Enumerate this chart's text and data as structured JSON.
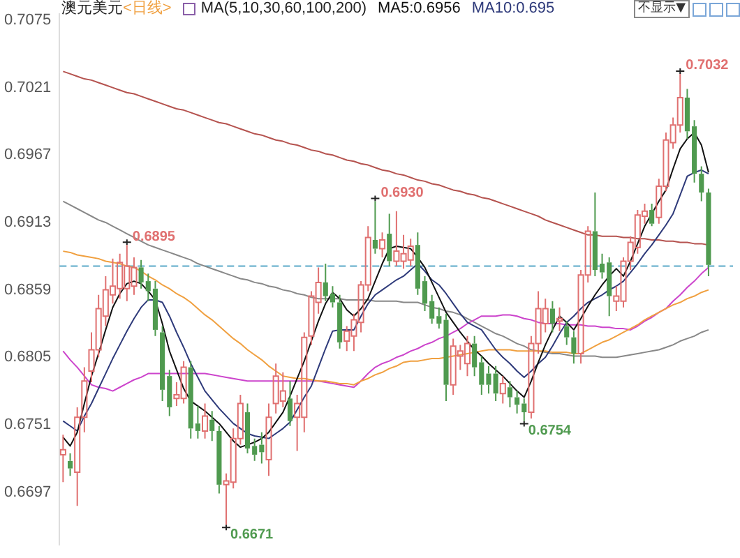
{
  "chart_data": {
    "type": "candlestick",
    "title": "澳元美元",
    "subtitle": "<日线>",
    "categories": [
      null,
      null,
      null,
      null,
      null,
      null,
      null,
      null,
      null,
      null,
      null,
      null,
      null,
      null,
      null,
      null,
      null,
      null,
      null,
      null,
      null,
      null,
      null,
      null,
      null,
      null,
      null,
      null,
      null,
      null,
      null,
      null,
      null,
      null,
      null,
      null,
      null,
      null,
      null,
      null,
      null,
      null,
      null,
      null,
      null,
      null,
      null,
      null,
      null,
      null,
      null,
      null,
      null,
      null,
      null,
      null,
      null,
      null,
      null,
      null,
      null,
      null,
      null,
      null,
      null,
      null,
      null,
      null,
      null,
      null,
      null,
      null,
      null,
      null,
      null,
      null,
      null,
      null,
      null,
      null,
      null,
      null,
      null,
      null,
      null,
      null,
      null,
      null,
      null,
      null,
      null,
      null
    ],
    "ohlc": [
      [
        0.6727,
        0.6743,
        0.6705,
        0.6731
      ],
      [
        0.6722,
        0.6728,
        0.671,
        0.6716
      ],
      [
        0.6713,
        0.6765,
        0.6686,
        0.6757
      ],
      [
        0.6757,
        0.6797,
        0.6745,
        0.6786
      ],
      [
        0.6794,
        0.6825,
        0.6785,
        0.6811
      ],
      [
        0.6811,
        0.6855,
        0.6805,
        0.6844
      ],
      [
        0.6838,
        0.687,
        0.683,
        0.6859
      ],
      [
        0.6855,
        0.6884,
        0.6848,
        0.6862
      ],
      [
        0.686,
        0.6888,
        0.6852,
        0.6881
      ],
      [
        0.686,
        0.6895,
        0.685,
        0.6878
      ],
      [
        0.6862,
        0.6885,
        0.6855,
        0.6877
      ],
      [
        0.6877,
        0.6883,
        0.686,
        0.6865
      ],
      [
        0.6866,
        0.6872,
        0.685,
        0.6858
      ],
      [
        0.686,
        0.6866,
        0.6822,
        0.6827
      ],
      [
        0.6825,
        0.683,
        0.677,
        0.6779
      ],
      [
        0.679,
        0.6795,
        0.6758,
        0.6765
      ],
      [
        0.6772,
        0.6785,
        0.6766,
        0.6775
      ],
      [
        0.6772,
        0.6802,
        0.6768,
        0.6797
      ],
      [
        0.6797,
        0.6802,
        0.674,
        0.6748
      ],
      [
        0.6752,
        0.6766,
        0.674,
        0.6746
      ],
      [
        0.6746,
        0.6768,
        0.674,
        0.6758
      ],
      [
        0.6755,
        0.6762,
        0.6738,
        0.6746
      ],
      [
        0.6746,
        0.675,
        0.6696,
        0.6703
      ],
      [
        0.6703,
        0.6712,
        0.6671,
        0.6706
      ],
      [
        0.6705,
        0.6748,
        0.67,
        0.674
      ],
      [
        0.674,
        0.6775,
        0.6735,
        0.6768
      ],
      [
        0.6761,
        0.6768,
        0.6728,
        0.6732
      ],
      [
        0.6734,
        0.674,
        0.6722,
        0.6727
      ],
      [
        0.6735,
        0.6745,
        0.672,
        0.6729
      ],
      [
        0.6723,
        0.6768,
        0.671,
        0.6757
      ],
      [
        0.6768,
        0.68,
        0.676,
        0.679
      ],
      [
        0.677,
        0.6793,
        0.6765,
        0.6778
      ],
      [
        0.6772,
        0.6786,
        0.675,
        0.6754
      ],
      [
        0.6757,
        0.6775,
        0.673,
        0.6768
      ],
      [
        0.6757,
        0.6825,
        0.6745,
        0.6821
      ],
      [
        0.6822,
        0.6858,
        0.6815,
        0.6854
      ],
      [
        0.6849,
        0.6877,
        0.684,
        0.6865
      ],
      [
        0.6865,
        0.688,
        0.685,
        0.6854
      ],
      [
        0.6856,
        0.6862,
        0.6845,
        0.6849
      ],
      [
        0.6849,
        0.6855,
        0.6812,
        0.6817
      ],
      [
        0.6818,
        0.683,
        0.681,
        0.6826
      ],
      [
        0.6822,
        0.684,
        0.681,
        0.6835
      ],
      [
        0.6833,
        0.6866,
        0.6825,
        0.6863
      ],
      [
        0.6863,
        0.691,
        0.6858,
        0.6901
      ],
      [
        0.6899,
        0.693,
        0.6888,
        0.6892
      ],
      [
        0.6892,
        0.6905,
        0.6885,
        0.6899
      ],
      [
        0.6904,
        0.692,
        0.6878,
        0.6882
      ],
      [
        0.6882,
        0.6922,
        0.6878,
        0.689
      ],
      [
        0.6882,
        0.6903,
        0.6876,
        0.6888
      ],
      [
        0.6883,
        0.69,
        0.6878,
        0.6894
      ],
      [
        0.6895,
        0.6905,
        0.6855,
        0.686
      ],
      [
        0.6866,
        0.687,
        0.6842,
        0.6848
      ],
      [
        0.685,
        0.6855,
        0.6832,
        0.6836
      ],
      [
        0.6838,
        0.6845,
        0.6828,
        0.6832
      ],
      [
        0.6835,
        0.684,
        0.677,
        0.6783
      ],
      [
        0.6783,
        0.682,
        0.6775,
        0.6814
      ],
      [
        0.6806,
        0.6815,
        0.6795,
        0.681
      ],
      [
        0.68,
        0.6822,
        0.679,
        0.6816
      ],
      [
        0.6816,
        0.6822,
        0.679,
        0.6797
      ],
      [
        0.6801,
        0.6806,
        0.6775,
        0.6783
      ],
      [
        0.6792,
        0.6798,
        0.6776,
        0.6783
      ],
      [
        0.6792,
        0.6798,
        0.677,
        0.6776
      ],
      [
        0.6776,
        0.679,
        0.6768,
        0.6784
      ],
      [
        0.6781,
        0.6786,
        0.6765,
        0.6773
      ],
      [
        0.6773,
        0.6778,
        0.676,
        0.6767
      ],
      [
        0.6768,
        0.6772,
        0.6754,
        0.6761
      ],
      [
        0.6761,
        0.6822,
        0.6756,
        0.6816
      ],
      [
        0.6816,
        0.6858,
        0.6808,
        0.6844
      ],
      [
        0.6832,
        0.6852,
        0.6825,
        0.6844
      ],
      [
        0.6844,
        0.685,
        0.6825,
        0.6832
      ],
      [
        0.6834,
        0.6845,
        0.6826,
        0.6836
      ],
      [
        0.683,
        0.6834,
        0.6815,
        0.6821
      ],
      [
        0.6821,
        0.6826,
        0.68,
        0.6808
      ],
      [
        0.6808,
        0.6875,
        0.68,
        0.6871
      ],
      [
        0.6871,
        0.691,
        0.6865,
        0.6906
      ],
      [
        0.6906,
        0.6937,
        0.687,
        0.6875
      ],
      [
        0.688,
        0.6888,
        0.6868,
        0.6873
      ],
      [
        0.6881,
        0.6885,
        0.6838,
        0.6854
      ],
      [
        0.685,
        0.6862,
        0.6842,
        0.6854
      ],
      [
        0.685,
        0.6885,
        0.6845,
        0.6882
      ],
      [
        0.6882,
        0.6902,
        0.6875,
        0.6897
      ],
      [
        0.6893,
        0.6923,
        0.6888,
        0.6919
      ],
      [
        0.6918,
        0.6928,
        0.6912,
        0.6922
      ],
      [
        0.6923,
        0.6928,
        0.691,
        0.6912
      ],
      [
        0.6917,
        0.6948,
        0.6912,
        0.6942
      ],
      [
        0.6942,
        0.6985,
        0.6938,
        0.6979
      ],
      [
        0.6977,
        0.6997,
        0.6972,
        0.6991
      ],
      [
        0.6991,
        0.7032,
        0.6985,
        0.7013
      ],
      [
        0.7013,
        0.702,
        0.698,
        0.6986
      ],
      [
        0.699,
        0.6995,
        0.6945,
        0.6952
      ],
      [
        0.6952,
        0.6958,
        0.693,
        0.6937
      ],
      [
        0.6937,
        0.694,
        0.687,
        0.6879
      ]
    ],
    "colors": [
      "#e07070",
      "#4f9a4f",
      "#e07070",
      "#e07070",
      "#e07070",
      "#e07070",
      "#e07070",
      "#e07070",
      "#e07070",
      "#e07070",
      "#e07070",
      "#4f9a4f",
      "#4f9a4f",
      "#4f9a4f",
      "#4f9a4f",
      "#4f9a4f",
      "#e07070",
      "#e07070",
      "#4f9a4f",
      "#4f9a4f",
      "#e07070",
      "#4f9a4f",
      "#4f9a4f",
      "#e07070",
      "#e07070",
      "#e07070",
      "#4f9a4f",
      "#4f9a4f",
      "#4f9a4f",
      "#e07070",
      "#e07070",
      "#e07070",
      "#4f9a4f",
      "#e07070",
      "#e07070",
      "#e07070",
      "#e07070",
      "#4f9a4f",
      "#4f9a4f",
      "#4f9a4f",
      "#e07070",
      "#e07070",
      "#e07070",
      "#e07070",
      "#4f9a4f",
      "#e07070",
      "#4f9a4f",
      "#e07070",
      "#e07070",
      "#e07070",
      "#4f9a4f",
      "#4f9a4f",
      "#4f9a4f",
      "#4f9a4f",
      "#4f9a4f",
      "#e07070",
      "#e07070",
      "#e07070",
      "#4f9a4f",
      "#4f9a4f",
      "#4f9a4f",
      "#4f9a4f",
      "#e07070",
      "#4f9a4f",
      "#4f9a4f",
      "#4f9a4f",
      "#e07070",
      "#e07070",
      "#e07070",
      "#4f9a4f",
      "#e07070",
      "#4f9a4f",
      "#4f9a4f",
      "#e07070",
      "#e07070",
      "#4f9a4f",
      "#4f9a4f",
      "#4f9a4f",
      "#e07070",
      "#e07070",
      "#e07070",
      "#e07070",
      "#e07070",
      "#4f9a4f",
      "#e07070",
      "#e07070",
      "#e07070",
      "#e07070",
      "#4f9a4f",
      "#4f9a4f",
      "#4f9a4f",
      "#4f9a4f"
    ],
    "series": [
      {
        "type": "line",
        "name": "MA5:0.6956",
        "color": "#111111",
        "values": [
          0.6741,
          0.6734,
          0.6745,
          0.6768,
          0.679,
          0.6808,
          0.6827,
          0.6845,
          0.6856,
          0.6864,
          0.6866,
          0.6864,
          0.6858,
          0.6851,
          0.6832,
          0.681,
          0.6795,
          0.678,
          0.677,
          0.6766,
          0.6762,
          0.6757,
          0.6752,
          0.6745,
          0.6738,
          0.6733,
          0.6735,
          0.6737,
          0.674,
          0.6745,
          0.6753,
          0.6761,
          0.6774,
          0.6788,
          0.6802,
          0.6818,
          0.6834,
          0.6848,
          0.6857,
          0.6852,
          0.6843,
          0.6838,
          0.6844,
          0.6852,
          0.6866,
          0.688,
          0.6892,
          0.6894,
          0.6893,
          0.6892,
          0.6885,
          0.6877,
          0.6865,
          0.6853,
          0.6841,
          0.6833,
          0.6825,
          0.6818,
          0.6811,
          0.6806,
          0.68,
          0.6795,
          0.679,
          0.6784,
          0.6778,
          0.6773,
          0.6786,
          0.6801,
          0.6815,
          0.6827,
          0.6838,
          0.6833,
          0.6827,
          0.6836,
          0.6846,
          0.6855,
          0.6863,
          0.687,
          0.6876,
          0.687,
          0.6882,
          0.6896,
          0.691,
          0.692,
          0.693,
          0.6939,
          0.6956,
          0.6972,
          0.698,
          0.6985,
          0.6975,
          0.6953
        ]
      },
      {
        "type": "line",
        "name": "MA10:0.695",
        "color": "#2e3a7a",
        "values": [
          0.6754,
          0.675,
          0.6746,
          0.6758,
          0.6768,
          0.678,
          0.6792,
          0.6804,
          0.6815,
          0.6826,
          0.6836,
          0.6845,
          0.6851,
          0.6851,
          0.6849,
          0.6838,
          0.6825,
          0.6813,
          0.68,
          0.6789,
          0.6778,
          0.6771,
          0.6764,
          0.6758,
          0.6752,
          0.6748,
          0.6744,
          0.6742,
          0.6741,
          0.674,
          0.6744,
          0.6748,
          0.6753,
          0.6763,
          0.6773,
          0.6782,
          0.6797,
          0.6812,
          0.6826,
          0.6827,
          0.6827,
          0.6827,
          0.6838,
          0.6848,
          0.6855,
          0.6859,
          0.6863,
          0.6867,
          0.687,
          0.6875,
          0.688,
          0.6874,
          0.6867,
          0.6863,
          0.6856,
          0.6848,
          0.684,
          0.6833,
          0.683,
          0.6827,
          0.6819,
          0.6811,
          0.6805,
          0.68,
          0.6794,
          0.6789,
          0.6794,
          0.68,
          0.6805,
          0.6814,
          0.6824,
          0.6833,
          0.6838,
          0.6844,
          0.6849,
          0.6852,
          0.6855,
          0.6859,
          0.6862,
          0.6866,
          0.6873,
          0.688,
          0.6888,
          0.6895,
          0.6903,
          0.6911,
          0.692,
          0.6935,
          0.695,
          0.6953,
          0.6955,
          0.6952
        ]
      },
      {
        "type": "line",
        "color": "#f0a040",
        "values": [
          0.689,
          0.6889,
          0.6887,
          0.6886,
          0.6885,
          0.6884,
          0.6882,
          0.6881,
          0.688,
          0.6878,
          0.6877,
          0.6874,
          0.687,
          0.6867,
          0.6863,
          0.686,
          0.6856,
          0.6853,
          0.6849,
          0.6844,
          0.6839,
          0.6835,
          0.683,
          0.6825,
          0.682,
          0.6816,
          0.6811,
          0.6807,
          0.6803,
          0.6798,
          0.6794,
          0.679,
          0.6789,
          0.6788,
          0.6788,
          0.6787,
          0.6786,
          0.6786,
          0.6785,
          0.6784,
          0.6784,
          0.6783,
          0.6786,
          0.6788,
          0.6791,
          0.6793,
          0.6796,
          0.6798,
          0.6801,
          0.6802,
          0.6802,
          0.6803,
          0.6804,
          0.6804,
          0.6805,
          0.6806,
          0.6807,
          0.6808,
          0.6809,
          0.681,
          0.6811,
          0.6811,
          0.6811,
          0.6811,
          0.681,
          0.681,
          0.681,
          0.681,
          0.681,
          0.6809,
          0.6809,
          0.6809,
          0.6808,
          0.6808,
          0.6811,
          0.6814,
          0.6817,
          0.6819,
          0.6822,
          0.6825,
          0.6828,
          0.6831,
          0.6835,
          0.6838,
          0.6841,
          0.6844,
          0.6847,
          0.6849,
          0.6852,
          0.6854,
          0.6857,
          0.6859
        ]
      },
      {
        "type": "line",
        "color": "#cc44cc",
        "values": [
          0.681,
          0.6803,
          0.6797,
          0.679,
          0.6783,
          0.6781,
          0.678,
          0.6778,
          0.6781,
          0.6784,
          0.6787,
          0.6789,
          0.6792,
          0.6792,
          0.6792,
          0.6792,
          0.6792,
          0.6792,
          0.6792,
          0.6792,
          0.6792,
          0.6791,
          0.679,
          0.6789,
          0.6788,
          0.6787,
          0.6786,
          0.6786,
          0.6786,
          0.6786,
          0.6786,
          0.6786,
          0.6786,
          0.6786,
          0.6786,
          0.6786,
          0.6786,
          0.6785,
          0.6784,
          0.6783,
          0.6782,
          0.6781,
          0.6786,
          0.6792,
          0.6797,
          0.68,
          0.6802,
          0.6805,
          0.6807,
          0.681,
          0.6812,
          0.6815,
          0.6817,
          0.682,
          0.6822,
          0.6825,
          0.6828,
          0.6832,
          0.6835,
          0.6838,
          0.6838,
          0.6838,
          0.6839,
          0.6839,
          0.6838,
          0.6836,
          0.6835,
          0.6833,
          0.6832,
          0.6832,
          0.6832,
          0.6831,
          0.6831,
          0.6831,
          0.683,
          0.683,
          0.6829,
          0.6829,
          0.6828,
          0.6828,
          0.6827,
          0.683,
          0.6834,
          0.6837,
          0.6841,
          0.6844,
          0.685,
          0.6855,
          0.6861,
          0.6866,
          0.6872,
          0.6877
        ]
      },
      {
        "type": "line",
        "color": "#888888",
        "values": [
          0.693,
          0.6927,
          0.6924,
          0.6921,
          0.6918,
          0.6915,
          0.6913,
          0.691,
          0.6907,
          0.6904,
          0.6901,
          0.6898,
          0.6895,
          0.6893,
          0.6891,
          0.6889,
          0.6887,
          0.6885,
          0.6883,
          0.688,
          0.6878,
          0.6876,
          0.6874,
          0.6872,
          0.687,
          0.6868,
          0.6867,
          0.6865,
          0.6864,
          0.6862,
          0.6861,
          0.6859,
          0.6858,
          0.6856,
          0.6855,
          0.6853,
          0.6852,
          0.6852,
          0.6852,
          0.6852,
          0.6851,
          0.6851,
          0.6851,
          0.6851,
          0.685,
          0.685,
          0.685,
          0.685,
          0.6849,
          0.6849,
          0.6849,
          0.6847,
          0.6845,
          0.6844,
          0.6842,
          0.6841,
          0.6839,
          0.6836,
          0.6833,
          0.683,
          0.6827,
          0.6824,
          0.6822,
          0.6819,
          0.6816,
          0.6814,
          0.6811,
          0.681,
          0.6809,
          0.6808,
          0.6808,
          0.6807,
          0.6806,
          0.6806,
          0.6806,
          0.6806,
          0.6805,
          0.6805,
          0.6805,
          0.6806,
          0.6807,
          0.6808,
          0.6809,
          0.681,
          0.6811,
          0.6813,
          0.6815,
          0.6818,
          0.682,
          0.6822,
          0.6825,
          0.6827
        ]
      },
      {
        "type": "line",
        "color": "#b5534f",
        "values": [
          0.7034,
          0.7032,
          0.703,
          0.7028,
          0.7027,
          0.7025,
          0.7023,
          0.7021,
          0.7019,
          0.7017,
          0.7016,
          0.7014,
          0.7012,
          0.701,
          0.7008,
          0.7006,
          0.7004,
          0.7003,
          0.7001,
          0.6999,
          0.6997,
          0.6995,
          0.6993,
          0.6992,
          0.699,
          0.6988,
          0.6986,
          0.6984,
          0.6983,
          0.6981,
          0.6979,
          0.6978,
          0.6976,
          0.6975,
          0.6973,
          0.6971,
          0.697,
          0.6968,
          0.6967,
          0.6965,
          0.6963,
          0.6962,
          0.696,
          0.6959,
          0.6957,
          0.6955,
          0.6954,
          0.6952,
          0.6951,
          0.6949,
          0.6947,
          0.6946,
          0.6944,
          0.6943,
          0.6941,
          0.6939,
          0.6938,
          0.6936,
          0.6935,
          0.6933,
          0.6932,
          0.693,
          0.6928,
          0.6926,
          0.6924,
          0.6922,
          0.692,
          0.6918,
          0.6915,
          0.6913,
          0.6911,
          0.6909,
          0.6907,
          0.6905,
          0.6903,
          0.6903,
          0.6902,
          0.6902,
          0.6902,
          0.6901,
          0.6901,
          0.69,
          0.69,
          0.6899,
          0.6899,
          0.6898,
          0.6898,
          0.6897,
          0.6897,
          0.6896,
          0.6896,
          0.6895
        ]
      }
    ],
    "ylim": [
      0.6655,
      0.708
    ],
    "yticks": [
      0.7075,
      0.7021,
      0.6967,
      0.6913,
      0.6859,
      0.6805,
      0.6751,
      0.6697
    ],
    "grid": false,
    "legend": "top",
    "marker": "none",
    "ref_lines": [
      {
        "axis": "y",
        "value": 0.6878,
        "color": "#5aa9c8",
        "line_style": "dashed"
      }
    ],
    "annotations": [
      "MA(5,10,30,60,100,200)",
      "不显示▼",
      "0.6895",
      "0.6930",
      "0.6671",
      "0.6754",
      "0.7032"
    ]
  }
}
